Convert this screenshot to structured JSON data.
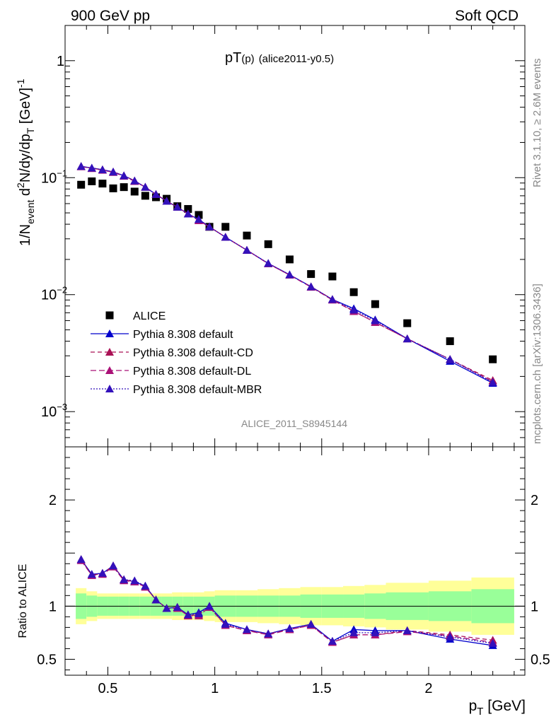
{
  "header": {
    "left": "900 GeV pp",
    "right": "Soft QCD"
  },
  "plot_title": {
    "main": "pT",
    "sub": "(p)",
    "tag": "(alice2011-y0.5)"
  },
  "side_labels": {
    "upper": "Rivet 3.1.10, ≥ 2.6M events",
    "lower": "mcplots.cern.ch [arXiv:1306.3436]"
  },
  "watermark": "ALICE_2011_S8945144",
  "colors": {
    "data": "#000000",
    "default": "#0000cc",
    "cd": "#aa1155",
    "dl": "#aa1177",
    "mbr": "#3311bb",
    "band_inner": "#99ff99",
    "band_outer": "#ffff99"
  },
  "chart_data": [
    {
      "type": "scatter",
      "panel": "main",
      "ylabel": "1/N_event d²N/dy/dp_T [GeV]⁻¹",
      "ylabel_parts": {
        "a": "1/N",
        "b": "event",
        "c": " d",
        "d": "2",
        "e": "N/dy/dp",
        "f": "T",
        "g": " [GeV]",
        "h": "-1"
      },
      "yscale": "log",
      "ylim": [
        0.0005,
        2
      ],
      "xlim": [
        0.3,
        2.45
      ],
      "y_ticks": [
        {
          "v": 1,
          "label": "1"
        },
        {
          "v": 0.1,
          "label": "10",
          "exp": "−1"
        },
        {
          "v": 0.01,
          "label": "10",
          "exp": "−2"
        },
        {
          "v": 0.001,
          "label": "10",
          "exp": "−3"
        }
      ],
      "x": [
        0.375,
        0.425,
        0.475,
        0.525,
        0.575,
        0.625,
        0.675,
        0.725,
        0.775,
        0.825,
        0.875,
        0.925,
        0.975,
        1.05,
        1.15,
        1.25,
        1.35,
        1.45,
        1.55,
        1.65,
        1.75,
        1.9,
        2.1,
        2.3
      ],
      "series": [
        {
          "name": "ALICE",
          "key": "data",
          "marker": "square",
          "values": [
            0.087,
            0.093,
            0.089,
            0.081,
            0.083,
            0.076,
            0.07,
            0.068,
            0.066,
            0.057,
            0.054,
            0.048,
            0.038,
            0.038,
            0.032,
            0.027,
            0.02,
            0.015,
            0.0143,
            0.0105,
            0.0083,
            0.0057,
            0.004,
            0.0028
          ]
        },
        {
          "name": "Pythia 8.308 default",
          "key": "default",
          "marker": "triangle",
          "dash": "none",
          "values": [
            0.125,
            0.121,
            0.117,
            0.112,
            0.104,
            0.094,
            0.083,
            0.072,
            0.063,
            0.056,
            0.049,
            0.044,
            0.038,
            0.031,
            0.024,
            0.0185,
            0.0148,
            0.0117,
            0.0091,
            0.0076,
            0.0061,
            0.0042,
            0.0027,
            0.00175
          ]
        },
        {
          "name": "Pythia 8.308 default-CD",
          "key": "cd",
          "marker": "triangle",
          "dash": "6 4",
          "values": [
            0.125,
            0.12,
            0.117,
            0.112,
            0.104,
            0.094,
            0.083,
            0.072,
            0.063,
            0.056,
            0.049,
            0.043,
            0.038,
            0.031,
            0.024,
            0.0184,
            0.0147,
            0.0117,
            0.0091,
            0.0072,
            0.0058,
            0.0042,
            0.0028,
            0.00185
          ]
        },
        {
          "name": "Pythia 8.308 default-DL",
          "key": "dl",
          "marker": "triangle",
          "dash": "8 4",
          "values": [
            0.124,
            0.12,
            0.116,
            0.111,
            0.103,
            0.093,
            0.083,
            0.072,
            0.063,
            0.056,
            0.049,
            0.043,
            0.038,
            0.031,
            0.024,
            0.0184,
            0.0147,
            0.0116,
            0.009,
            0.0072,
            0.0058,
            0.0042,
            0.0028,
            0.0018
          ]
        },
        {
          "name": "Pythia 8.308 default-MBR",
          "key": "mbr",
          "marker": "triangle",
          "dash": "2 2",
          "values": [
            0.125,
            0.121,
            0.117,
            0.112,
            0.104,
            0.094,
            0.083,
            0.072,
            0.063,
            0.056,
            0.049,
            0.044,
            0.038,
            0.031,
            0.024,
            0.0185,
            0.0148,
            0.0117,
            0.0091,
            0.0074,
            0.006,
            0.0042,
            0.0028,
            0.00178
          ]
        }
      ]
    },
    {
      "type": "line",
      "panel": "ratio",
      "xlabel_main": "p",
      "xlabel_sub": "T",
      "xlabel_unit": " [GeV]",
      "ylabel": "Ratio to ALICE",
      "ylim": [
        0.35,
        2.5
      ],
      "xlim": [
        0.3,
        2.45
      ],
      "y_ticks": [
        {
          "v": 0.5,
          "label": "0.5"
        },
        {
          "v": 1,
          "label": "1"
        },
        {
          "v": 2,
          "label": "2"
        }
      ],
      "x_ticks": [
        {
          "v": 0.5,
          "label": "0.5"
        },
        {
          "v": 1,
          "label": "1"
        },
        {
          "v": 1.5,
          "label": "1.5"
        },
        {
          "v": 2,
          "label": "2"
        }
      ],
      "x": [
        0.375,
        0.425,
        0.475,
        0.525,
        0.575,
        0.625,
        0.675,
        0.725,
        0.775,
        0.825,
        0.875,
        0.925,
        0.975,
        1.05,
        1.15,
        1.25,
        1.35,
        1.45,
        1.55,
        1.65,
        1.75,
        1.9,
        2.1,
        2.3
      ],
      "band_edges": [
        0.35,
        0.4,
        0.45,
        0.5,
        0.55,
        0.6,
        0.65,
        0.7,
        0.75,
        0.8,
        0.85,
        0.9,
        0.95,
        1.0,
        1.1,
        1.2,
        1.3,
        1.4,
        1.5,
        1.6,
        1.7,
        1.8,
        2.0,
        2.2,
        2.4
      ],
      "band_inner": [
        0.12,
        0.1,
        0.09,
        0.09,
        0.09,
        0.09,
        0.09,
        0.09,
        0.09,
        0.09,
        0.09,
        0.09,
        0.09,
        0.1,
        0.1,
        0.1,
        0.1,
        0.11,
        0.11,
        0.11,
        0.12,
        0.13,
        0.14,
        0.16
      ],
      "band_outer": [
        0.17,
        0.14,
        0.12,
        0.12,
        0.12,
        0.12,
        0.12,
        0.12,
        0.12,
        0.13,
        0.13,
        0.13,
        0.14,
        0.15,
        0.15,
        0.16,
        0.17,
        0.18,
        0.18,
        0.19,
        0.2,
        0.22,
        0.24,
        0.27
      ],
      "series": [
        {
          "name": "Pythia 8.308 default",
          "key": "default",
          "values": [
            1.44,
            1.3,
            1.31,
            1.38,
            1.25,
            1.23,
            1.19,
            1.06,
            0.98,
            0.99,
            0.92,
            0.94,
            1.0,
            0.84,
            0.78,
            0.74,
            0.79,
            0.83,
            0.67,
            0.78,
            0.77,
            0.77,
            0.69,
            0.63
          ]
        },
        {
          "name": "Pythia 8.308 default-CD",
          "key": "cd",
          "values": [
            1.44,
            1.29,
            1.31,
            1.38,
            1.25,
            1.23,
            1.18,
            1.06,
            0.98,
            0.99,
            0.91,
            0.92,
            0.99,
            0.82,
            0.77,
            0.74,
            0.78,
            0.82,
            0.66,
            0.73,
            0.73,
            0.77,
            0.73,
            0.68
          ]
        },
        {
          "name": "Pythia 8.308 default-DL",
          "key": "dl",
          "values": [
            1.43,
            1.29,
            1.3,
            1.37,
            1.24,
            1.23,
            1.18,
            1.06,
            0.98,
            0.98,
            0.91,
            0.91,
            0.99,
            0.82,
            0.77,
            0.73,
            0.78,
            0.82,
            0.66,
            0.73,
            0.73,
            0.76,
            0.72,
            0.66
          ]
        },
        {
          "name": "Pythia 8.308 default-MBR",
          "key": "mbr",
          "values": [
            1.44,
            1.3,
            1.31,
            1.38,
            1.25,
            1.24,
            1.19,
            1.06,
            0.98,
            0.99,
            0.92,
            0.93,
            1.0,
            0.83,
            0.78,
            0.74,
            0.79,
            0.83,
            0.67,
            0.75,
            0.75,
            0.77,
            0.71,
            0.65
          ]
        }
      ]
    }
  ]
}
